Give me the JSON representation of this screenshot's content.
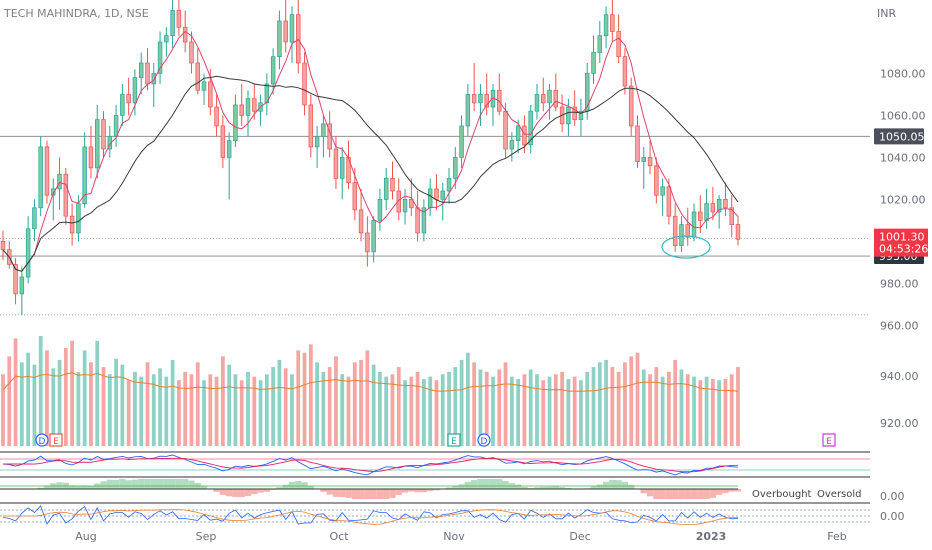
{
  "header": {
    "title": "TECH MAHINDRA, 1D, NSE",
    "currency": "INR"
  },
  "colors": {
    "up": "#26a69a",
    "up_body": "#7cc9a6",
    "down": "#ef5350",
    "down_body": "#f4a1a0",
    "vol_up": "#8fd1c5",
    "vol_down": "#f3a6a2",
    "ma_fast": "#e0436b",
    "ma_slow": "#3a3a3a",
    "vol_ma": "#e8812c",
    "price_tag": "#f23645",
    "level_tag": "#4a4f5a",
    "axis_text": "#6b6f7a",
    "ellipse": "#3fb9c8",
    "indicator_blue": "#2962ff",
    "indicator_red": "#e91e63"
  },
  "tags": {
    "last_price": "1001.30",
    "countdown": "04:53:26",
    "level_high": "1050.05",
    "level_low": "993.00"
  },
  "indicators": {
    "osc_labels": [
      "Overbought",
      "Oversold"
    ],
    "osc_value": "0.00",
    "rsi_value": "0.00"
  },
  "event_markers": [
    {
      "type": "D",
      "x": 0,
      "panel": "volume",
      "kind": "dividend"
    },
    {
      "type": "E",
      "x": 0,
      "panel": "volume",
      "kind": "earnings"
    },
    {
      "type": "E",
      "x": 0,
      "panel": "volume",
      "kind": "earnings"
    },
    {
      "type": "D",
      "x": 0,
      "panel": "volume",
      "kind": "dividend"
    },
    {
      "type": "E",
      "x": 0,
      "panel": "volume",
      "kind": "earnings-future"
    }
  ],
  "chart_data": {
    "type": "candlestick",
    "title": "TECH MAHINDRA, 1D, NSE",
    "ylabel": "INR",
    "ylim": [
      953,
      1115
    ],
    "y_ticks": [
      960,
      980,
      1000,
      1020,
      1040,
      1060,
      1080
    ],
    "y_tick_labels": [
      "960.00",
      "980.00",
      "1000.00",
      "1020.00",
      "1040.00",
      "1060.00",
      "1080.00"
    ],
    "extra_axis_labels": [
      {
        "text": "940.00"
      },
      {
        "text": "920.00"
      },
      {
        "text": "0.00"
      },
      {
        "text": "0.00"
      }
    ],
    "x_ticks": [
      "Aug",
      "Sep",
      "Oct",
      "Nov",
      "Dec",
      "2023",
      "Feb"
    ],
    "horizontal_levels": [
      {
        "value": 1050.05,
        "style": "solid"
      },
      {
        "value": 993.0,
        "style": "solid"
      },
      {
        "value": 1001.3,
        "style": "dotted"
      },
      {
        "value": 965.0,
        "style": "dotted"
      }
    ],
    "candles": [
      [
        1000,
        1005,
        991,
        996,
        60
      ],
      [
        996,
        1000,
        987,
        989,
        75
      ],
      [
        989,
        992,
        970,
        975,
        90
      ],
      [
        975,
        988,
        965,
        983,
        70
      ],
      [
        983,
        1012,
        980,
        1006,
        78
      ],
      [
        1006,
        1020,
        1000,
        1016,
        68
      ],
      [
        1016,
        1050,
        1012,
        1045,
        92
      ],
      [
        1045,
        1048,
        1018,
        1022,
        80
      ],
      [
        1022,
        1030,
        1010,
        1025,
        65
      ],
      [
        1025,
        1040,
        1015,
        1032,
        72
      ],
      [
        1032,
        1035,
        1008,
        1012,
        82
      ],
      [
        1012,
        1018,
        998,
        1004,
        88
      ],
      [
        1004,
        1022,
        1000,
        1018,
        62
      ],
      [
        1018,
        1052,
        1016,
        1045,
        80
      ],
      [
        1045,
        1055,
        1030,
        1035,
        70
      ],
      [
        1035,
        1065,
        1030,
        1058,
        88
      ],
      [
        1058,
        1062,
        1040,
        1044,
        66
      ],
      [
        1044,
        1055,
        1040,
        1050,
        60
      ],
      [
        1050,
        1065,
        1045,
        1060,
        73
      ],
      [
        1060,
        1075,
        1055,
        1070,
        68
      ],
      [
        1070,
        1078,
        1060,
        1066,
        55
      ],
      [
        1066,
        1082,
        1060,
        1078,
        62
      ],
      [
        1078,
        1090,
        1070,
        1085,
        58
      ],
      [
        1085,
        1092,
        1072,
        1075,
        70
      ],
      [
        1075,
        1085,
        1064,
        1080,
        60
      ],
      [
        1080,
        1100,
        1075,
        1095,
        65
      ],
      [
        1095,
        1102,
        1088,
        1098,
        58
      ],
      [
        1098,
        1115,
        1092,
        1110,
        72
      ],
      [
        1110,
        1115,
        1098,
        1102,
        55
      ],
      [
        1102,
        1110,
        1090,
        1095,
        62
      ],
      [
        1095,
        1100,
        1080,
        1085,
        60
      ],
      [
        1085,
        1092,
        1070,
        1072,
        70
      ],
      [
        1072,
        1080,
        1065,
        1076,
        55
      ],
      [
        1076,
        1082,
        1060,
        1064,
        60
      ],
      [
        1064,
        1070,
        1050,
        1055,
        58
      ],
      [
        1055,
        1060,
        1035,
        1040,
        75
      ],
      [
        1040,
        1052,
        1020,
        1048,
        68
      ],
      [
        1048,
        1070,
        1045,
        1065,
        60
      ],
      [
        1065,
        1075,
        1055,
        1060,
        55
      ],
      [
        1060,
        1072,
        1050,
        1068,
        62
      ],
      [
        1068,
        1075,
        1058,
        1062,
        58
      ],
      [
        1062,
        1070,
        1055,
        1066,
        55
      ],
      [
        1066,
        1080,
        1060,
        1075,
        60
      ],
      [
        1075,
        1092,
        1070,
        1088,
        66
      ],
      [
        1088,
        1110,
        1082,
        1105,
        72
      ],
      [
        1105,
        1115,
        1090,
        1095,
        65
      ],
      [
        1095,
        1112,
        1085,
        1108,
        60
      ],
      [
        1108,
        1115,
        1080,
        1085,
        80
      ],
      [
        1085,
        1090,
        1060,
        1065,
        78
      ],
      [
        1065,
        1070,
        1040,
        1045,
        85
      ],
      [
        1045,
        1055,
        1035,
        1050,
        70
      ],
      [
        1050,
        1060,
        1040,
        1056,
        62
      ],
      [
        1056,
        1062,
        1040,
        1044,
        66
      ],
      [
        1044,
        1050,
        1025,
        1030,
        75
      ],
      [
        1030,
        1045,
        1020,
        1040,
        60
      ],
      [
        1040,
        1048,
        1025,
        1028,
        58
      ],
      [
        1028,
        1035,
        1010,
        1015,
        70
      ],
      [
        1015,
        1025,
        1000,
        1004,
        72
      ],
      [
        1004,
        1012,
        988,
        995,
        80
      ],
      [
        995,
        1012,
        990,
        1010,
        68
      ],
      [
        1010,
        1025,
        1005,
        1020,
        62
      ],
      [
        1020,
        1035,
        1015,
        1030,
        58
      ],
      [
        1030,
        1038,
        1020,
        1024,
        60
      ],
      [
        1024,
        1030,
        1010,
        1014,
        66
      ],
      [
        1014,
        1025,
        1008,
        1020,
        55
      ],
      [
        1020,
        1030,
        1012,
        1016,
        58
      ],
      [
        1016,
        1024,
        1000,
        1004,
        62
      ],
      [
        1004,
        1020,
        1000,
        1016,
        56
      ],
      [
        1016,
        1030,
        1012,
        1025,
        58
      ],
      [
        1025,
        1032,
        1015,
        1020,
        55
      ],
      [
        1020,
        1028,
        1010,
        1024,
        60
      ],
      [
        1024,
        1035,
        1018,
        1030,
        62
      ],
      [
        1030,
        1045,
        1025,
        1040,
        66
      ],
      [
        1040,
        1060,
        1035,
        1055,
        72
      ],
      [
        1055,
        1075,
        1050,
        1070,
        78
      ],
      [
        1070,
        1085,
        1062,
        1066,
        70
      ],
      [
        1066,
        1075,
        1055,
        1070,
        64
      ],
      [
        1070,
        1080,
        1060,
        1064,
        62
      ],
      [
        1064,
        1075,
        1055,
        1072,
        58
      ],
      [
        1072,
        1080,
        1060,
        1062,
        64
      ],
      [
        1062,
        1066,
        1040,
        1044,
        70
      ],
      [
        1044,
        1052,
        1038,
        1048,
        58
      ],
      [
        1048,
        1058,
        1042,
        1055,
        56
      ],
      [
        1055,
        1060,
        1042,
        1046,
        60
      ],
      [
        1046,
        1065,
        1042,
        1062,
        64
      ],
      [
        1062,
        1075,
        1058,
        1070,
        60
      ],
      [
        1070,
        1078,
        1062,
        1066,
        55
      ],
      [
        1066,
        1075,
        1058,
        1072,
        58
      ],
      [
        1072,
        1080,
        1062,
        1064,
        60
      ],
      [
        1064,
        1070,
        1052,
        1056,
        62
      ],
      [
        1056,
        1068,
        1050,
        1064,
        56
      ],
      [
        1064,
        1072,
        1055,
        1058,
        58
      ],
      [
        1058,
        1068,
        1050,
        1062,
        55
      ],
      [
        1062,
        1085,
        1058,
        1080,
        62
      ],
      [
        1080,
        1098,
        1075,
        1090,
        66
      ],
      [
        1090,
        1105,
        1085,
        1098,
        70
      ],
      [
        1098,
        1112,
        1092,
        1108,
        72
      ],
      [
        1108,
        1115,
        1095,
        1100,
        66
      ],
      [
        1100,
        1108,
        1085,
        1088,
        62
      ],
      [
        1088,
        1092,
        1070,
        1074,
        70
      ],
      [
        1074,
        1078,
        1050,
        1055,
        75
      ],
      [
        1055,
        1060,
        1035,
        1038,
        78
      ],
      [
        1038,
        1045,
        1025,
        1040,
        64
      ],
      [
        1040,
        1048,
        1032,
        1036,
        60
      ],
      [
        1036,
        1040,
        1018,
        1022,
        66
      ],
      [
        1022,
        1030,
        1012,
        1026,
        58
      ],
      [
        1026,
        1030,
        1008,
        1012,
        62
      ],
      [
        1012,
        1018,
        995,
        998,
        72
      ],
      [
        998,
        1012,
        995,
        1008,
        64
      ],
      [
        1008,
        1016,
        998,
        1002,
        60
      ],
      [
        1002,
        1018,
        1000,
        1014,
        58
      ],
      [
        1014,
        1022,
        1004,
        1010,
        55
      ],
      [
        1010,
        1025,
        1006,
        1018,
        58
      ],
      [
        1018,
        1026,
        1010,
        1014,
        56
      ],
      [
        1014,
        1022,
        1006,
        1020,
        55
      ],
      [
        1020,
        1028,
        1012,
        1016,
        56
      ],
      [
        1016,
        1022,
        1002,
        1008,
        60
      ],
      [
        1008,
        1012,
        998,
        1001,
        66
      ]
    ],
    "ma_fast_values": [],
    "ma_slow_values": [],
    "volume_ma_label": ""
  }
}
